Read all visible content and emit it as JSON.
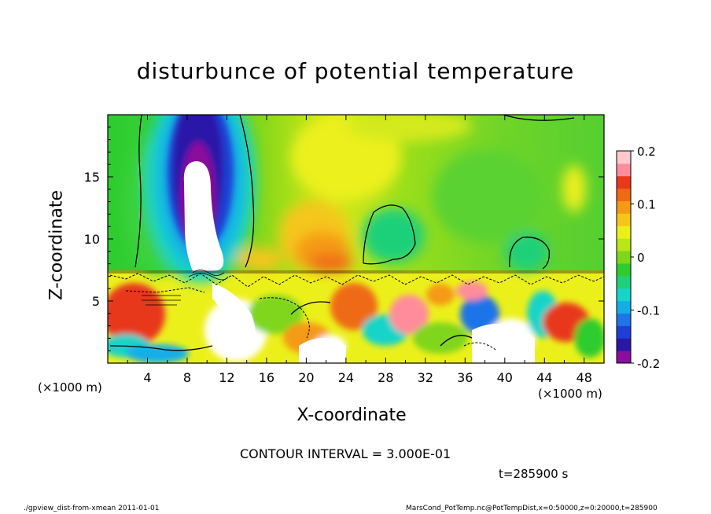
{
  "chart_data": {
    "type": "heatmap",
    "title": "disturbunce of potential temperature",
    "xlabel": "X-coordinate",
    "ylabel": "Z-coordinate",
    "x_unit_label": "(×1000 m)",
    "x_unit_label_right": "(×1000 m)",
    "xlim": [
      0,
      50
    ],
    "ylim": [
      0,
      20
    ],
    "x_ticks": [
      4,
      8,
      12,
      16,
      20,
      24,
      28,
      32,
      36,
      40,
      44,
      48
    ],
    "y_ticks": [
      5,
      10,
      15
    ],
    "colorbar": {
      "range": [
        -0.2,
        0.2
      ],
      "ticks": [
        "0.2",
        "0.1",
        "0",
        "-0.1",
        "-0.2"
      ],
      "tick_values": [
        0.2,
        0.1,
        0,
        -0.1,
        -0.2
      ]
    },
    "contour_interval_text": "CONTOUR INTERVAL = 3.000E-01",
    "time_text": "t=285900 s"
  },
  "footer": {
    "left": "./gpview_dist-from-xmean  2011-01-01",
    "right": "MarsCond_PotTemp.nc@PotTempDist,x=0:50000,z=0:20000,t=285900"
  },
  "colors": {
    "palette": [
      "#8a0f9e",
      "#2a17a8",
      "#1f3fd4",
      "#1f74e8",
      "#13aee6",
      "#17d4c8",
      "#1fd07a",
      "#2ecc2e",
      "#7fd61a",
      "#b9e617",
      "#ecf01a",
      "#f5c61a",
      "#f59a17",
      "#ef6a14",
      "#e8391a",
      "#ff8c9a",
      "#ffc8cc"
    ]
  }
}
